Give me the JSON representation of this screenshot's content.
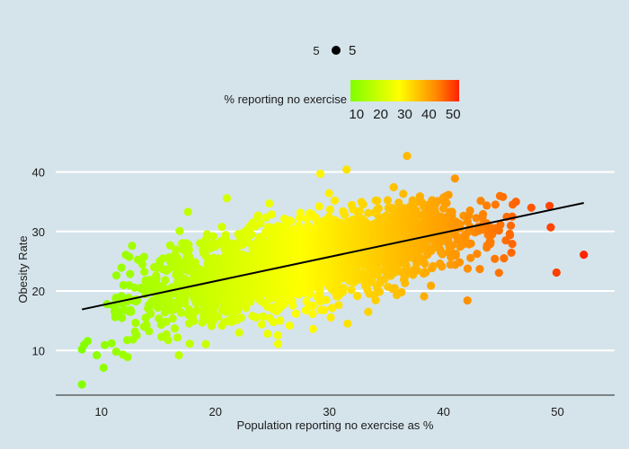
{
  "chart_data": {
    "type": "scatter",
    "xlabel": "Population reporting no exercise as %",
    "ylabel": "Obesity Rate",
    "xlim": [
      6,
      55
    ],
    "ylim": [
      2.5,
      44
    ],
    "x_ticks": [
      10,
      20,
      30,
      40,
      50
    ],
    "y_ticks": [
      10,
      20,
      30,
      40
    ],
    "grid": "horizontal",
    "size_legend": {
      "value_label": "5",
      "item_label": "5"
    },
    "color_legend": {
      "title": "% reporting no exercise",
      "ticks": [
        10,
        20,
        30,
        40,
        50
      ],
      "range": [
        7.5,
        52.5
      ],
      "colors": [
        "#7fff00",
        "#ffff00",
        "#ff8c00",
        "#ff2200"
      ]
    },
    "trend_line": {
      "x": [
        8.3,
        52.3
      ],
      "y": [
        16.9,
        34.8
      ]
    },
    "outliers": [
      {
        "x": 8.3,
        "y": 4.3
      },
      {
        "x": 8.3,
        "y": 10.2
      },
      {
        "x": 8.5,
        "y": 11.0
      },
      {
        "x": 8.8,
        "y": 11.6
      },
      {
        "x": 9.6,
        "y": 9.2
      },
      {
        "x": 10.2,
        "y": 7.1
      },
      {
        "x": 10.3,
        "y": 10.9
      },
      {
        "x": 10.9,
        "y": 11.2
      },
      {
        "x": 11.3,
        "y": 9.8
      },
      {
        "x": 11.9,
        "y": 9.3
      },
      {
        "x": 12.3,
        "y": 8.9
      },
      {
        "x": 10.5,
        "y": 17.8
      },
      {
        "x": 12.7,
        "y": 27.6
      },
      {
        "x": 16.8,
        "y": 9.2
      },
      {
        "x": 17.6,
        "y": 33.3
      },
      {
        "x": 21.0,
        "y": 35.6
      },
      {
        "x": 25.5,
        "y": 11.1
      },
      {
        "x": 29.2,
        "y": 39.7
      },
      {
        "x": 31.5,
        "y": 40.4
      },
      {
        "x": 36.8,
        "y": 42.7
      },
      {
        "x": 42.1,
        "y": 18.4
      },
      {
        "x": 47.7,
        "y": 34.0
      },
      {
        "x": 49.3,
        "y": 34.3
      },
      {
        "x": 49.4,
        "y": 30.7
      },
      {
        "x": 49.9,
        "y": 23.1
      },
      {
        "x": 52.3,
        "y": 26.1
      },
      {
        "x": 44.5,
        "y": 25.4
      },
      {
        "x": 45.3,
        "y": 25.5
      },
      {
        "x": 45.8,
        "y": 29.6
      },
      {
        "x": 41.0,
        "y": 38.9
      },
      {
        "x": 33.4,
        "y": 16.5
      },
      {
        "x": 38.3,
        "y": 19.1
      }
    ],
    "cluster": {
      "count": 2400,
      "slope": 0.407,
      "intercept": 13.5,
      "noise_sd": 3.4,
      "x_mean": 28,
      "x_sd": 7.5
    }
  }
}
